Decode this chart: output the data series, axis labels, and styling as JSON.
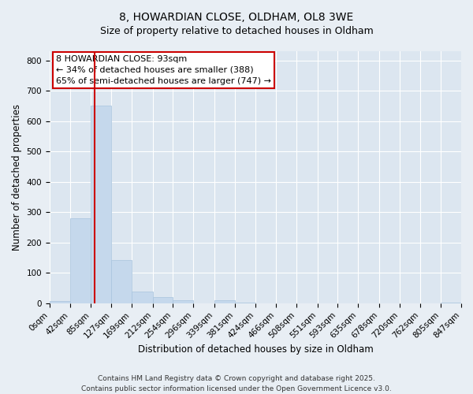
{
  "title_line1": "8, HOWARDIAN CLOSE, OLDHAM, OL8 3WE",
  "title_line2": "Size of property relative to detached houses in Oldham",
  "xlabel": "Distribution of detached houses by size in Oldham",
  "ylabel": "Number of detached properties",
  "bar_values": [
    7,
    280,
    650,
    143,
    38,
    20,
    10,
    0,
    10,
    2,
    0,
    0,
    0,
    0,
    0,
    0,
    0,
    0,
    0,
    2
  ],
  "bar_edges": [
    0,
    42,
    85,
    127,
    169,
    212,
    254,
    296,
    339,
    381,
    424,
    466,
    508,
    551,
    593,
    635,
    678,
    720,
    762,
    805,
    847
  ],
  "bar_color": "#c5d8ec",
  "bar_edgecolor": "#a8c4de",
  "vline_x": 93,
  "vline_color": "#cc0000",
  "annotation_line1": "8 HOWARDIAN CLOSE: 93sqm",
  "annotation_line2": "← 34% of detached houses are smaller (388)",
  "annotation_line3": "65% of semi-detached houses are larger (747) →",
  "ylim": [
    0,
    830
  ],
  "yticks": [
    0,
    100,
    200,
    300,
    400,
    500,
    600,
    700,
    800
  ],
  "xtick_labels": [
    "0sqm",
    "42sqm",
    "85sqm",
    "127sqm",
    "169sqm",
    "212sqm",
    "254sqm",
    "296sqm",
    "339sqm",
    "381sqm",
    "424sqm",
    "466sqm",
    "508sqm",
    "551sqm",
    "593sqm",
    "635sqm",
    "678sqm",
    "720sqm",
    "762sqm",
    "805sqm",
    "847sqm"
  ],
  "footer_line1": "Contains HM Land Registry data © Crown copyright and database right 2025.",
  "footer_line2": "Contains public sector information licensed under the Open Government Licence v3.0.",
  "background_color": "#e8eef4",
  "plot_background": "#dce6f0",
  "grid_color": "#ffffff",
  "title_fontsize": 10,
  "subtitle_fontsize": 9,
  "axis_label_fontsize": 8.5,
  "tick_fontsize": 7.5,
  "annotation_fontsize": 8,
  "footer_fontsize": 6.5
}
